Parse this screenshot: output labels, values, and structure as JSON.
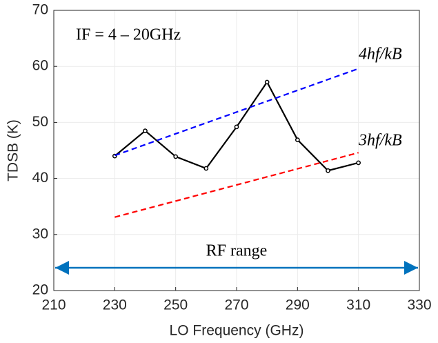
{
  "chart_data": {
    "type": "line",
    "xlabel": "LO Frequency (GHz)",
    "ylabel": "TDSB (K)",
    "annotations": [
      "IF = 4 – 20GHz",
      "RF range"
    ],
    "series": [
      {
        "name": null,
        "color": "#000000",
        "style": "solid",
        "markers": true,
        "x": [
          230,
          240,
          250,
          260,
          270,
          280,
          290,
          300,
          310
        ],
        "values": [
          44.0,
          48.5,
          43.9,
          41.8,
          49.2,
          57.2,
          46.9,
          41.4,
          42.8
        ]
      },
      {
        "name": "4hf/kB",
        "color": "#0000ff",
        "style": "dashed",
        "markers": false,
        "x": [
          230,
          310
        ],
        "values": [
          44.1,
          59.6
        ]
      },
      {
        "name": "3hf/kB",
        "color": "#ff0000",
        "style": "dashed",
        "markers": false,
        "x": [
          230,
          310
        ],
        "values": [
          33.1,
          44.6
        ]
      }
    ],
    "xlim": [
      210,
      330
    ],
    "xticks": [
      210,
      230,
      250,
      270,
      290,
      310,
      330
    ],
    "ylim": [
      20,
      70
    ],
    "yticks": [
      20,
      30,
      40,
      50,
      60,
      70
    ],
    "grid": true
  }
}
